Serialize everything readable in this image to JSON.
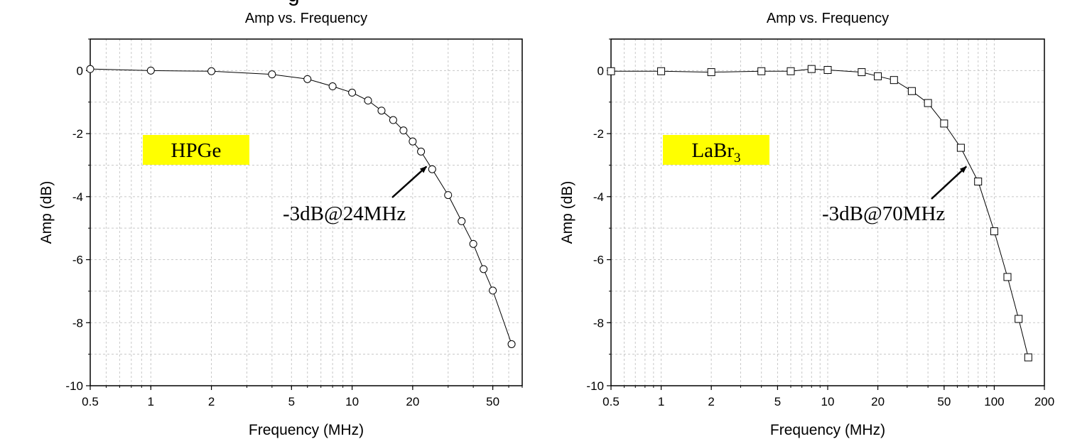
{
  "page": {
    "header_fragment": "g"
  },
  "chart_data": [
    {
      "type": "line",
      "title": "Amp vs. Frequency",
      "xlabel": "Frequency (MHz)",
      "ylabel": "Amp (dB)",
      "x_scale": "log",
      "xlim": [
        0.5,
        70
      ],
      "ylim": [
        -10,
        1
      ],
      "x_ticks": [
        0.5,
        1,
        2,
        5,
        10,
        20,
        50
      ],
      "x_tick_labels": [
        "0.5",
        "1",
        "2",
        "5",
        "10",
        "20",
        "50"
      ],
      "y_ticks": [
        0,
        -2,
        -4,
        -6,
        -8,
        -10
      ],
      "y_tick_labels": [
        "0",
        "-2",
        "-4",
        "-6",
        "-8",
        "-10"
      ],
      "grid": true,
      "marker": "circle",
      "series": [
        {
          "x": [
            0.5,
            1,
            2,
            4,
            6,
            8,
            10,
            12,
            14,
            16,
            18,
            20,
            22,
            25,
            30,
            35,
            40,
            45,
            50,
            62
          ],
          "y": [
            0.05,
            0.0,
            -0.02,
            -0.12,
            -0.27,
            -0.5,
            -0.7,
            -0.95,
            -1.27,
            -1.57,
            -1.9,
            -2.25,
            -2.57,
            -3.13,
            -3.95,
            -4.78,
            -5.5,
            -6.3,
            -6.98,
            -8.68
          ]
        }
      ],
      "label_box": {
        "text": "HPGe",
        "sub": "",
        "color": "#ffff00"
      },
      "annotation": {
        "text": "-3dB@24MHz",
        "target_x": 24,
        "target_y": -3.0
      }
    },
    {
      "type": "line",
      "title": "Amp vs. Frequency",
      "xlabel": "Frequency (MHz)",
      "ylabel": "Amp (dB)",
      "x_scale": "log",
      "xlim": [
        0.5,
        200
      ],
      "ylim": [
        -10,
        1
      ],
      "x_ticks": [
        0.5,
        1,
        2,
        5,
        10,
        20,
        50,
        100,
        200
      ],
      "x_tick_labels": [
        "0.5",
        "1",
        "2",
        "5",
        "10",
        "20",
        "50",
        "100",
        "200"
      ],
      "y_ticks": [
        0,
        -2,
        -4,
        -6,
        -8,
        -10
      ],
      "y_tick_labels": [
        "0",
        "-2",
        "-4",
        "-6",
        "-8",
        "-10"
      ],
      "grid": true,
      "marker": "square",
      "series": [
        {
          "x": [
            0.5,
            1,
            2,
            4,
            6,
            8,
            10,
            16,
            20,
            25,
            32,
            40,
            50,
            63,
            80,
            100,
            120,
            140,
            160
          ],
          "y": [
            -0.02,
            -0.02,
            -0.05,
            -0.02,
            -0.02,
            0.05,
            0.02,
            -0.05,
            -0.18,
            -0.3,
            -0.65,
            -1.03,
            -1.68,
            -2.45,
            -3.52,
            -5.1,
            -6.55,
            -7.88,
            -9.1
          ]
        }
      ],
      "label_box": {
        "text": "LaBr",
        "sub": "3",
        "color": "#ffff00"
      },
      "annotation": {
        "text": "-3dB@70MHz",
        "target_x": 70,
        "target_y": -3.0
      }
    }
  ]
}
